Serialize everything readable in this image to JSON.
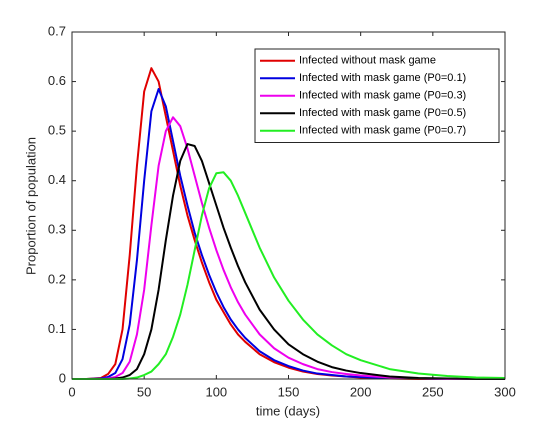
{
  "chart_data": {
    "type": "line",
    "xlabel": "time (days)",
    "ylabel": "Proportion of population",
    "x": [
      0,
      10,
      20,
      25,
      30,
      35,
      40,
      45,
      50,
      55,
      60,
      65,
      70,
      75,
      80,
      85,
      90,
      95,
      100,
      105,
      110,
      115,
      120,
      130,
      140,
      150,
      160,
      170,
      180,
      190,
      200,
      220,
      240,
      260,
      280,
      300
    ],
    "series": [
      {
        "name": "Infected without mask game",
        "color": "#e00000",
        "values": [
          0,
          0,
          0.002,
          0.01,
          0.03,
          0.1,
          0.25,
          0.43,
          0.58,
          0.627,
          0.6,
          0.53,
          0.46,
          0.39,
          0.33,
          0.28,
          0.235,
          0.195,
          0.16,
          0.135,
          0.11,
          0.09,
          0.075,
          0.05,
          0.034,
          0.023,
          0.015,
          0.01,
          0.007,
          0.005,
          0.003,
          0.001,
          0,
          0,
          0,
          0
        ]
      },
      {
        "name": "Infected with mask game (P0=0.1)",
        "color": "#0000e0",
        "values": [
          0,
          0,
          0.001,
          0.004,
          0.012,
          0.04,
          0.11,
          0.24,
          0.4,
          0.54,
          0.585,
          0.55,
          0.48,
          0.41,
          0.35,
          0.295,
          0.25,
          0.21,
          0.175,
          0.145,
          0.12,
          0.1,
          0.083,
          0.056,
          0.038,
          0.026,
          0.017,
          0.011,
          0.008,
          0.005,
          0.004,
          0.002,
          0.001,
          0,
          0,
          0
        ]
      },
      {
        "name": "Infected with mask game (P0=0.3)",
        "color": "#ee00ee",
        "values": [
          0,
          0,
          0,
          0.001,
          0.004,
          0.012,
          0.035,
          0.09,
          0.18,
          0.31,
          0.43,
          0.5,
          0.528,
          0.51,
          0.465,
          0.41,
          0.355,
          0.305,
          0.26,
          0.22,
          0.185,
          0.155,
          0.13,
          0.09,
          0.062,
          0.043,
          0.03,
          0.02,
          0.014,
          0.01,
          0.007,
          0.003,
          0.001,
          0,
          0,
          0
        ]
      },
      {
        "name": "Infected with mask game (P0=0.5)",
        "color": "#000000",
        "values": [
          0,
          0,
          0,
          0,
          0.001,
          0.003,
          0.008,
          0.02,
          0.05,
          0.1,
          0.18,
          0.28,
          0.37,
          0.44,
          0.474,
          0.47,
          0.44,
          0.395,
          0.35,
          0.305,
          0.265,
          0.228,
          0.195,
          0.14,
          0.1,
          0.07,
          0.05,
          0.035,
          0.024,
          0.017,
          0.012,
          0.005,
          0.002,
          0.001,
          0,
          0
        ]
      },
      {
        "name": "Infected with mask game (P0=0.7)",
        "color": "#22ee22",
        "values": [
          0,
          0,
          0,
          0,
          0,
          0,
          0.001,
          0.003,
          0.008,
          0.015,
          0.03,
          0.05,
          0.085,
          0.13,
          0.19,
          0.26,
          0.33,
          0.385,
          0.415,
          0.417,
          0.4,
          0.37,
          0.335,
          0.265,
          0.205,
          0.158,
          0.12,
          0.09,
          0.068,
          0.05,
          0.038,
          0.02,
          0.011,
          0.006,
          0.003,
          0.002
        ]
      }
    ],
    "xlim": [
      0,
      300
    ],
    "xticks": [
      0,
      50,
      100,
      150,
      200,
      250,
      300
    ],
    "ylim": [
      0,
      0.7
    ],
    "yticks": [
      0,
      0.1,
      0.2,
      0.3,
      0.4,
      0.5,
      0.6,
      0.7
    ],
    "grid": false,
    "legend": "upper right"
  }
}
